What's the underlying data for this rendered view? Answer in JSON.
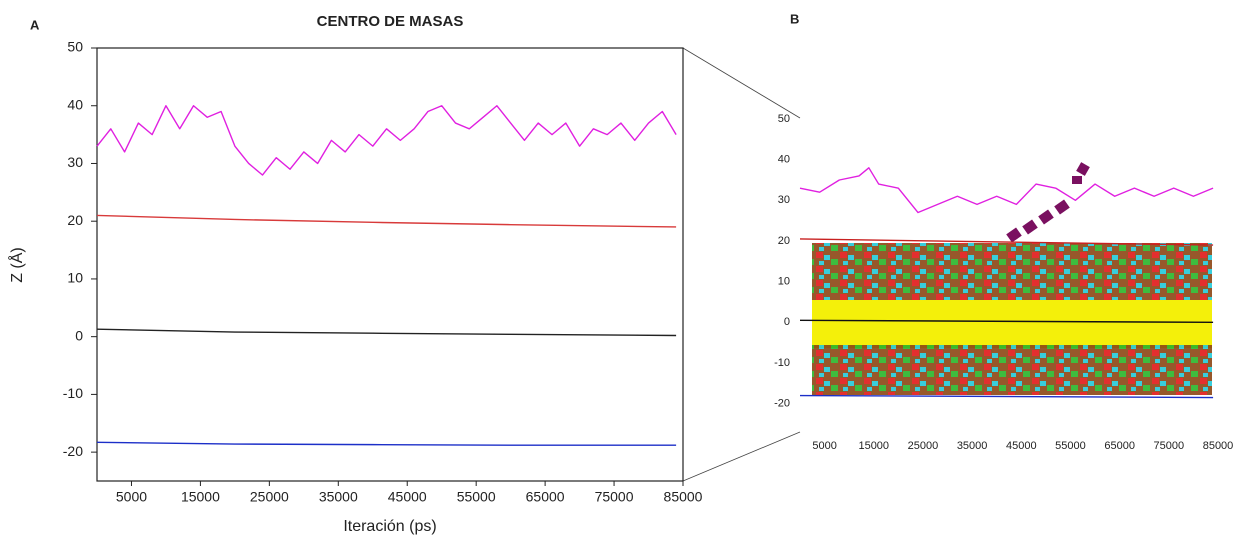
{
  "chart_data": [
    {
      "type": "line",
      "panel_label": "A",
      "title": "CENTRO DE MASAS",
      "x_label": "Iteración (ps)",
      "y_label": "Z (Å)",
      "xlim": [
        0,
        85000
      ],
      "xticks": [
        5000,
        15000,
        25000,
        35000,
        45000,
        55000,
        65000,
        75000,
        85000
      ],
      "ylim": [
        -25,
        50
      ],
      "yticks": [
        -20,
        -10,
        0,
        10,
        20,
        30,
        40,
        50
      ],
      "frame": true,
      "series": [
        {
          "color": "#e020e0",
          "x": [
            0,
            2000,
            4000,
            6000,
            8000,
            10000,
            12000,
            14000,
            16000,
            18000,
            20000,
            22000,
            24000,
            26000,
            28000,
            30000,
            32000,
            34000,
            36000,
            38000,
            40000,
            42000,
            44000,
            46000,
            48000,
            50000,
            52000,
            54000,
            56000,
            58000,
            60000,
            62000,
            64000,
            66000,
            68000,
            70000,
            72000,
            74000,
            76000,
            78000,
            80000,
            82000,
            84000
          ],
          "values": [
            33,
            36,
            32,
            37,
            35,
            40,
            36,
            40,
            38,
            39,
            33,
            30,
            28,
            31,
            29,
            32,
            30,
            34,
            32,
            35,
            33,
            36,
            34,
            36,
            39,
            40,
            37,
            36,
            38,
            40,
            37,
            34,
            37,
            35,
            37,
            33,
            36,
            35,
            37,
            34,
            37,
            39,
            35
          ]
        },
        {
          "color": "#d83a3a",
          "x": [
            0,
            20000,
            40000,
            60000,
            84000
          ],
          "values": [
            21,
            20.3,
            19.8,
            19.4,
            19
          ]
        },
        {
          "color": "#222222",
          "x": [
            0,
            20000,
            40000,
            60000,
            84000
          ],
          "values": [
            1.3,
            0.8,
            0.6,
            0.4,
            0.2
          ]
        },
        {
          "color": "#1c2fc8",
          "x": [
            0,
            20000,
            40000,
            60000,
            84000
          ],
          "values": [
            -18.3,
            -18.6,
            -18.7,
            -18.8,
            -18.8
          ]
        }
      ]
    },
    {
      "type": "line",
      "panel_label": "B",
      "xlim": [
        0,
        85000
      ],
      "xticks": [
        5000,
        15000,
        25000,
        35000,
        45000,
        55000,
        65000,
        75000,
        85000
      ],
      "ylim": [
        -25,
        50
      ],
      "yticks": [
        -20,
        -10,
        0,
        10,
        20,
        30,
        40,
        50
      ],
      "frame": false,
      "series": [
        {
          "color": "#e020e0",
          "x": [
            0,
            4000,
            8000,
            12000,
            14000,
            16000,
            20000,
            24000,
            28000,
            32000,
            36000,
            40000,
            44000,
            48000,
            52000,
            56000,
            60000,
            64000,
            68000,
            72000,
            76000,
            80000,
            84000
          ],
          "values": [
            33,
            32,
            35,
            36,
            38,
            34,
            33,
            27,
            29,
            31,
            29,
            31,
            29,
            34,
            33,
            30,
            34,
            31,
            33,
            31,
            33,
            31,
            33
          ]
        },
        {
          "color": "#c82020",
          "x": [
            0,
            84000
          ],
          "values": [
            20.5,
            19
          ]
        },
        {
          "color": "#111111",
          "x": [
            0,
            84000
          ],
          "values": [
            0.5,
            0
          ]
        },
        {
          "color": "#1c2fc8",
          "x": [
            0,
            84000
          ],
          "values": [
            -18,
            -18.5
          ]
        }
      ]
    }
  ]
}
